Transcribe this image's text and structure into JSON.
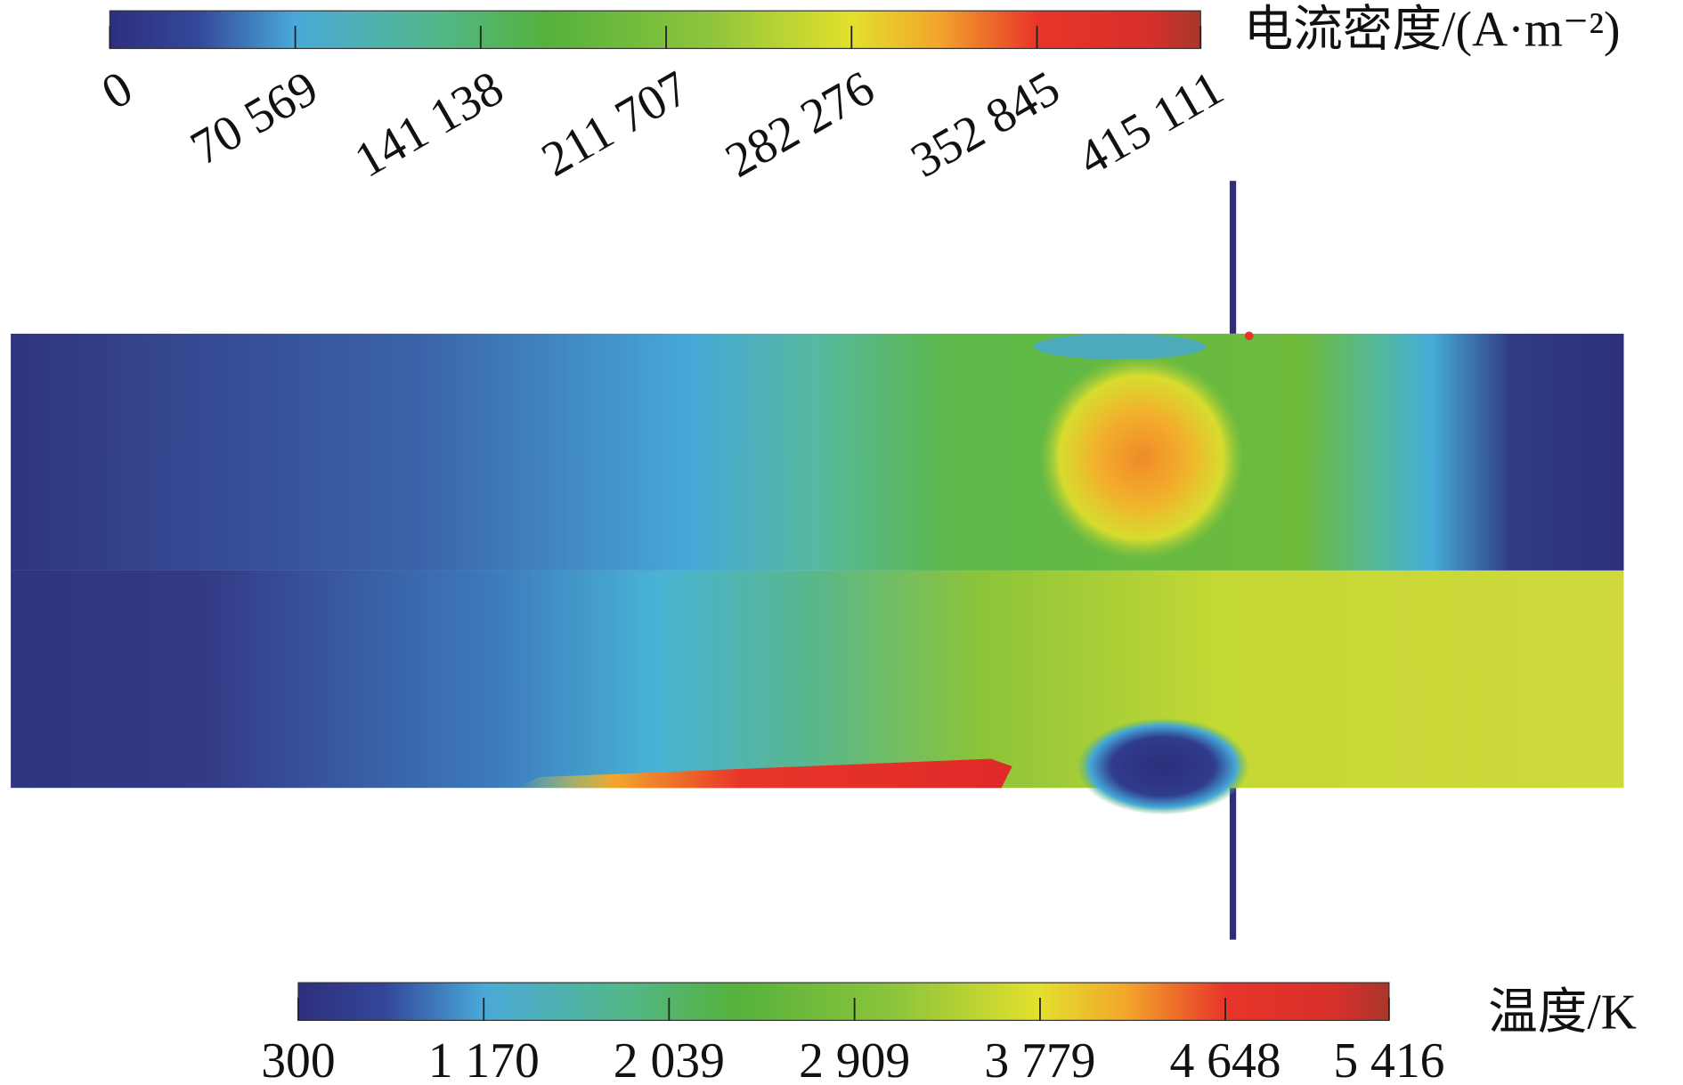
{
  "chart_data": [
    {
      "type": "colorbar",
      "title": "电流密度/(A·m⁻²)",
      "clim": [
        0,
        415111
      ],
      "ticks": [
        0,
        {
          "value": 70569,
          "label": "70 569"
        },
        {
          "value": 141138,
          "label": "141 138"
        },
        {
          "value": 211707,
          "label": "211 707"
        },
        {
          "value": 282276,
          "label": "282 276"
        },
        {
          "value": 352845,
          "label": "352 845"
        },
        {
          "value": 415111,
          "label": "415 111"
        }
      ]
    },
    {
      "type": "colorbar",
      "title": "温度/K",
      "clim": [
        300,
        5416
      ],
      "ticks": [
        300,
        {
          "value": 1170,
          "label": "1 170"
        },
        {
          "value": 2039,
          "label": "2 039"
        },
        {
          "value": 2909,
          "label": "2 909"
        },
        {
          "value": 3779,
          "label": "3 779"
        },
        {
          "value": 4648,
          "label": "4 648"
        },
        {
          "value": 5416,
          "label": "5 416"
        }
      ]
    }
  ]
}
